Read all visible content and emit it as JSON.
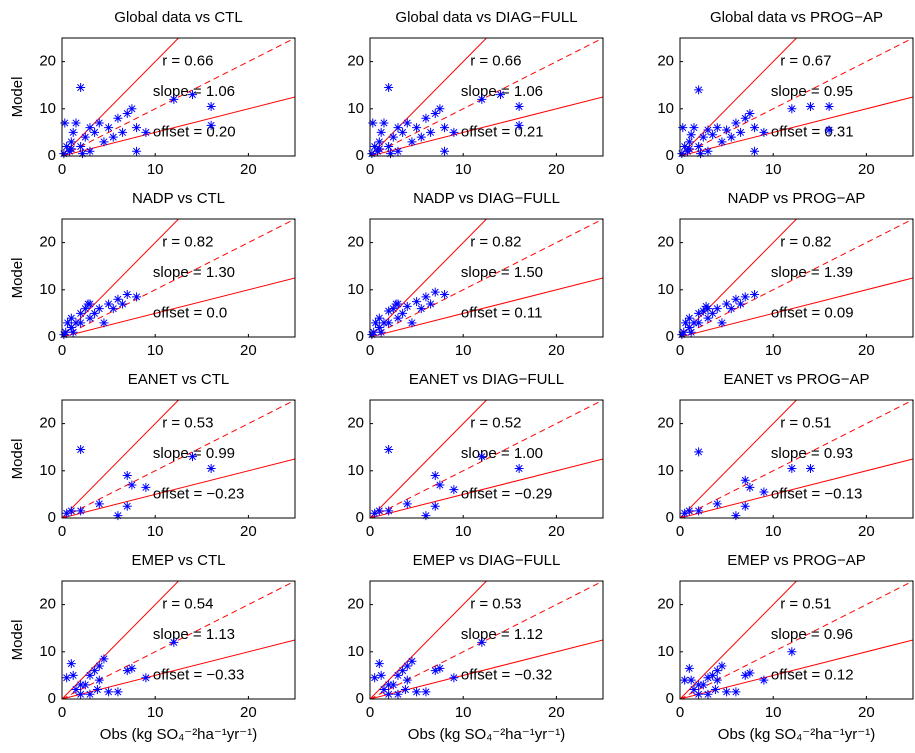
{
  "chart_data": [
    {
      "type": "scatter",
      "title": "Global data vs CTL",
      "ylabel": "Model",
      "xlim": [
        0,
        25
      ],
      "ylim": [
        0,
        25
      ],
      "xticks": [
        0,
        10,
        20
      ],
      "yticks": [
        0,
        10,
        20
      ],
      "color": "#0000ff",
      "x": [
        0.2,
        0.5,
        0.8,
        1,
        1.2,
        1.5,
        2,
        2,
        2.5,
        3,
        3,
        3.5,
        4,
        4.5,
        5,
        5.5,
        6,
        6.5,
        7,
        7.5,
        8,
        8,
        9,
        12,
        14,
        16,
        16,
        0.3,
        1,
        2.2
      ],
      "values": [
        0.5,
        2,
        1,
        3,
        5,
        7,
        2,
        14.5,
        4,
        6,
        1,
        5,
        7,
        3,
        6,
        4,
        8,
        5,
        9,
        10,
        6,
        1,
        5,
        12,
        13,
        10.5,
        6.5,
        7,
        1.5,
        0.5
      ],
      "annotations": [
        "r = 0.66",
        "slope = 1.06",
        "offset = 0.20"
      ],
      "reference_lines": [
        {
          "slope": 2,
          "dashed": false
        },
        {
          "slope": 1,
          "dashed": true
        },
        {
          "slope": 0.5,
          "dashed": false
        }
      ],
      "reference_color": "#ff0000"
    },
    {
      "type": "scatter",
      "title": "Global data vs DIAG−FULL",
      "xlim": [
        0,
        25
      ],
      "ylim": [
        0,
        25
      ],
      "xticks": [
        0,
        10,
        20
      ],
      "yticks": [
        0,
        10,
        20
      ],
      "color": "#0000ff",
      "x": [
        0.2,
        0.5,
        0.8,
        1,
        1.2,
        1.5,
        2,
        2,
        2.5,
        3,
        3,
        3.5,
        4,
        4.5,
        5,
        5.5,
        6,
        6.5,
        7,
        7.5,
        8,
        8,
        9,
        12,
        14,
        16,
        16,
        0.3,
        1,
        2.2
      ],
      "values": [
        0.5,
        2,
        1,
        3,
        5,
        7,
        2,
        14.5,
        4,
        6,
        1,
        5,
        7,
        3,
        6,
        4,
        8,
        5,
        9,
        10,
        6,
        1,
        5,
        12,
        13,
        10.5,
        6.5,
        7,
        1.5,
        0.5
      ],
      "annotations": [
        "r = 0.66",
        "slope = 1.06",
        "offset = 0.21"
      ],
      "reference_lines": [
        {
          "slope": 2,
          "dashed": false
        },
        {
          "slope": 1,
          "dashed": true
        },
        {
          "slope": 0.5,
          "dashed": false
        }
      ],
      "reference_color": "#ff0000"
    },
    {
      "type": "scatter",
      "title": "Global data vs PROG−AP",
      "xlim": [
        0,
        25
      ],
      "ylim": [
        0,
        25
      ],
      "xticks": [
        0,
        10,
        20
      ],
      "yticks": [
        0,
        10,
        20
      ],
      "color": "#0000ff",
      "x": [
        0.2,
        0.5,
        0.8,
        1,
        1.2,
        1.5,
        2,
        2,
        2.5,
        3,
        3,
        3.5,
        4,
        4.5,
        5,
        5.5,
        6,
        6.5,
        7,
        7.5,
        8,
        8,
        9,
        12,
        14,
        16,
        16,
        0.3,
        1,
        2.2
      ],
      "values": [
        0.5,
        2,
        1,
        3,
        4.5,
        6,
        2,
        14,
        4,
        5.5,
        1,
        4.5,
        6,
        3,
        5.5,
        4,
        7,
        5,
        8,
        9,
        6,
        1,
        5,
        10,
        10.5,
        10.5,
        5.5,
        6,
        1.5,
        0.5
      ],
      "annotations": [
        "r = 0.67",
        "slope = 0.95",
        "offset = 0.31"
      ],
      "reference_lines": [
        {
          "slope": 2,
          "dashed": false
        },
        {
          "slope": 1,
          "dashed": true
        },
        {
          "slope": 0.5,
          "dashed": false
        }
      ],
      "reference_color": "#ff0000"
    },
    {
      "type": "scatter",
      "title": "NADP vs CTL",
      "ylabel": "Model",
      "xlim": [
        0,
        25
      ],
      "ylim": [
        0,
        25
      ],
      "xticks": [
        0,
        10,
        20
      ],
      "yticks": [
        0,
        10,
        20
      ],
      "color": "#0000ff",
      "x": [
        0.2,
        0.4,
        0.6,
        1,
        1,
        1.5,
        2,
        2,
        2.5,
        3,
        3,
        3.5,
        4,
        4.5,
        5,
        5.5,
        6,
        6.5,
        7,
        8,
        2.8,
        1.2
      ],
      "values": [
        0.5,
        1,
        3,
        2,
        4,
        3,
        5,
        3,
        6,
        4,
        7,
        5,
        6,
        3,
        7,
        6,
        8,
        7,
        9,
        8.5,
        7,
        1
      ],
      "annotations": [
        "r = 0.82",
        "slope = 1.30",
        "offset = 0.0"
      ],
      "reference_lines": [
        {
          "slope": 2,
          "dashed": false
        },
        {
          "slope": 1,
          "dashed": true
        },
        {
          "slope": 0.5,
          "dashed": false
        }
      ],
      "reference_color": "#ff0000"
    },
    {
      "type": "scatter",
      "title": "NADP vs DIAG−FULL",
      "xlim": [
        0,
        25
      ],
      "ylim": [
        0,
        25
      ],
      "xticks": [
        0,
        10,
        20
      ],
      "yticks": [
        0,
        10,
        20
      ],
      "color": "#0000ff",
      "x": [
        0.2,
        0.4,
        0.6,
        1,
        1,
        1.5,
        2,
        2,
        2.5,
        3,
        3,
        3.5,
        4,
        4.5,
        5,
        5.5,
        6,
        6.5,
        7,
        8,
        2.8,
        1.2
      ],
      "values": [
        0.5,
        1,
        3,
        2,
        4,
        3,
        5.5,
        3,
        6,
        4,
        7,
        5,
        6.5,
        3,
        7.5,
        6,
        8.5,
        7,
        9.5,
        9,
        7,
        1
      ],
      "annotations": [
        "r = 0.82",
        "slope = 1.50",
        "offset = 0.11"
      ],
      "reference_lines": [
        {
          "slope": 2,
          "dashed": false
        },
        {
          "slope": 1,
          "dashed": true
        },
        {
          "slope": 0.5,
          "dashed": false
        }
      ],
      "reference_color": "#ff0000"
    },
    {
      "type": "scatter",
      "title": "NADP vs PROG−AP",
      "xlim": [
        0,
        25
      ],
      "ylim": [
        0,
        25
      ],
      "xticks": [
        0,
        10,
        20
      ],
      "yticks": [
        0,
        10,
        20
      ],
      "color": "#0000ff",
      "x": [
        0.2,
        0.4,
        0.6,
        1,
        1,
        1.5,
        2,
        2,
        2.5,
        3,
        3,
        3.5,
        4,
        4.5,
        5,
        5.5,
        6,
        6.5,
        7,
        8,
        2.8,
        1.2
      ],
      "values": [
        0.5,
        1,
        3,
        2,
        4,
        3,
        5,
        3,
        5.5,
        4,
        6,
        5,
        6,
        3,
        7,
        6,
        8,
        7,
        8.5,
        9,
        6.5,
        1
      ],
      "annotations": [
        "r = 0.82",
        "slope = 1.39",
        "offset = 0.09"
      ],
      "reference_lines": [
        {
          "slope": 2,
          "dashed": false
        },
        {
          "slope": 1,
          "dashed": true
        },
        {
          "slope": 0.5,
          "dashed": false
        }
      ],
      "reference_color": "#ff0000"
    },
    {
      "type": "scatter",
      "title": "EANET vs CTL",
      "ylabel": "Model",
      "xlim": [
        0,
        25
      ],
      "ylim": [
        0,
        25
      ],
      "xticks": [
        0,
        10,
        20
      ],
      "yticks": [
        0,
        10,
        20
      ],
      "color": "#0000ff",
      "x": [
        0.5,
        1,
        2,
        2,
        4,
        6,
        7,
        7,
        7.5,
        9,
        14,
        16
      ],
      "values": [
        1,
        1.5,
        1.5,
        14.5,
        3,
        0.5,
        2.5,
        9,
        7,
        6.5,
        13,
        10.5
      ],
      "annotations": [
        "r = 0.53",
        "slope = 0.99",
        "offset = −0.23"
      ],
      "reference_lines": [
        {
          "slope": 2,
          "dashed": false
        },
        {
          "slope": 1,
          "dashed": true
        },
        {
          "slope": 0.5,
          "dashed": false
        }
      ],
      "reference_color": "#ff0000"
    },
    {
      "type": "scatter",
      "title": "EANET vs DIAG−FULL",
      "xlim": [
        0,
        25
      ],
      "ylim": [
        0,
        25
      ],
      "xticks": [
        0,
        10,
        20
      ],
      "yticks": [
        0,
        10,
        20
      ],
      "color": "#0000ff",
      "x": [
        0.5,
        1,
        2,
        2,
        4,
        6,
        7,
        7,
        7.5,
        9,
        12,
        16
      ],
      "values": [
        1,
        1.5,
        1.5,
        14.5,
        3,
        0.5,
        2.5,
        9,
        7,
        6,
        13,
        10.5
      ],
      "annotations": [
        "r = 0.52",
        "slope = 1.00",
        "offset = −0.29"
      ],
      "reference_lines": [
        {
          "slope": 2,
          "dashed": false
        },
        {
          "slope": 1,
          "dashed": true
        },
        {
          "slope": 0.5,
          "dashed": false
        }
      ],
      "reference_color": "#ff0000"
    },
    {
      "type": "scatter",
      "title": "EANET vs PROG−AP",
      "xlim": [
        0,
        25
      ],
      "ylim": [
        0,
        25
      ],
      "xticks": [
        0,
        10,
        20
      ],
      "yticks": [
        0,
        10,
        20
      ],
      "color": "#0000ff",
      "x": [
        0.5,
        1,
        2,
        2,
        4,
        6,
        7,
        7,
        7.5,
        9,
        12,
        14
      ],
      "values": [
        1,
        1.5,
        1.5,
        14,
        3,
        0.5,
        2.5,
        8,
        6.5,
        5.5,
        10.5,
        10.5
      ],
      "annotations": [
        "r = 0.51",
        "slope = 0.93",
        "offset = −0.13"
      ],
      "reference_lines": [
        {
          "slope": 2,
          "dashed": false
        },
        {
          "slope": 1,
          "dashed": true
        },
        {
          "slope": 0.5,
          "dashed": false
        }
      ],
      "reference_color": "#ff0000"
    },
    {
      "type": "scatter",
      "title": "EMEP vs CTL",
      "ylabel": "Model",
      "xlabel": "Obs (kg SO₄⁻²ha⁻¹yr⁻¹)",
      "xlim": [
        0,
        25
      ],
      "ylim": [
        0,
        25
      ],
      "xticks": [
        0,
        10,
        20
      ],
      "yticks": [
        0,
        10,
        20
      ],
      "color": "#0000ff",
      "x": [
        0.5,
        1,
        1.5,
        2,
        2.5,
        3,
        3,
        3.5,
        4,
        4,
        4.5,
        5,
        6,
        7,
        7.5,
        9,
        12,
        2,
        1.2,
        3.8
      ],
      "values": [
        4.5,
        7.5,
        2,
        1,
        3,
        5,
        1,
        6,
        4,
        7,
        8.5,
        1.5,
        1.5,
        6,
        6.5,
        4.5,
        12,
        3,
        5,
        2
      ],
      "annotations": [
        "r = 0.54",
        "slope = 1.13",
        "offset = −0.33"
      ],
      "reference_lines": [
        {
          "slope": 2,
          "dashed": false
        },
        {
          "slope": 1,
          "dashed": true
        },
        {
          "slope": 0.5,
          "dashed": false
        }
      ],
      "reference_color": "#ff0000"
    },
    {
      "type": "scatter",
      "title": "EMEP vs DIAG−FULL",
      "xlabel": "Obs (kg SO₄⁻²ha⁻¹yr⁻¹)",
      "xlim": [
        0,
        25
      ],
      "ylim": [
        0,
        25
      ],
      "xticks": [
        0,
        10,
        20
      ],
      "yticks": [
        0,
        10,
        20
      ],
      "color": "#0000ff",
      "x": [
        0.5,
        1,
        1.5,
        2,
        2.5,
        3,
        3,
        3.5,
        4,
        4,
        4.5,
        5,
        6,
        7,
        7.5,
        9,
        12,
        2,
        1.2,
        3.8
      ],
      "values": [
        4.5,
        7.5,
        2,
        1,
        3,
        5,
        1,
        6,
        4,
        7,
        8,
        1.5,
        1.5,
        6,
        6.5,
        4.5,
        12,
        3,
        5,
        2
      ],
      "annotations": [
        "r = 0.53",
        "slope = 1.12",
        "offset = −0.32"
      ],
      "reference_lines": [
        {
          "slope": 2,
          "dashed": false
        },
        {
          "slope": 1,
          "dashed": true
        },
        {
          "slope": 0.5,
          "dashed": false
        }
      ],
      "reference_color": "#ff0000"
    },
    {
      "type": "scatter",
      "title": "EMEP vs PROG−AP",
      "xlabel": "Obs (kg SO₄⁻²ha⁻¹yr⁻¹)",
      "xlim": [
        0,
        25
      ],
      "ylim": [
        0,
        25
      ],
      "xticks": [
        0,
        10,
        20
      ],
      "yticks": [
        0,
        10,
        20
      ],
      "color": "#0000ff",
      "x": [
        0.5,
        1,
        1.5,
        2,
        2.5,
        3,
        3,
        3.5,
        4,
        4,
        4.5,
        5,
        6,
        7,
        7.5,
        9,
        12,
        2,
        1.2,
        3.8
      ],
      "values": [
        4,
        6.5,
        2,
        1,
        3,
        4.5,
        1,
        5,
        4,
        6,
        7,
        1.5,
        1.5,
        5,
        5.5,
        4,
        10,
        3,
        4,
        2
      ],
      "annotations": [
        "r = 0.51",
        "slope = 0.96",
        "offset = 0.12"
      ],
      "reference_lines": [
        {
          "slope": 2,
          "dashed": false
        },
        {
          "slope": 1,
          "dashed": true
        },
        {
          "slope": 0.5,
          "dashed": false
        }
      ],
      "reference_color": "#ff0000"
    }
  ]
}
